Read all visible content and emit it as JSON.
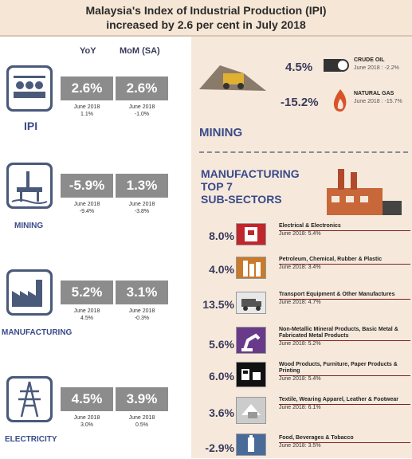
{
  "header": {
    "title_line1": "Malaysia's Index of Industrial Production (IPI)",
    "title_line2": "increased by 2.6 per cent in July 2018"
  },
  "columns": {
    "yoy": "YoY",
    "mom": "MoM (SA)"
  },
  "indices": [
    {
      "label": "IPI",
      "icon": "factory-robot-icon",
      "yoy": "2.6%",
      "mom": "2.6%",
      "yoy_prev": "June 2018\n1.1%",
      "mom_prev": "June 2018\n-1.0%"
    },
    {
      "label": "MINING",
      "icon": "oil-rig-icon",
      "yoy": "-5.9%",
      "mom": "1.3%",
      "yoy_prev": "June 2018\n-9.4%",
      "mom_prev": "June 2018\n-3.8%"
    },
    {
      "label": "MANUFACTURING",
      "icon": "factory-icon",
      "yoy": "5.2%",
      "mom": "3.1%",
      "yoy_prev": "June 2018\n4.5%",
      "mom_prev": "June 2018\n-0.3%"
    },
    {
      "label": "ELECTRICITY",
      "icon": "pylon-icon",
      "yoy": "4.5%",
      "mom": "3.9%",
      "yoy_prev": "June 2018\n3.0%",
      "mom_prev": "June 2018\n0.5%"
    }
  ],
  "mining": {
    "title": "MINING",
    "crude_oil": {
      "value": "4.5%",
      "label": "CRUDE OIL",
      "prev": "June 2018 : -2.2%"
    },
    "natural_gas": {
      "value": "-15.2%",
      "label": "NATURAL GAS",
      "prev": "June 2018 : -15.7%"
    }
  },
  "manufacturing": {
    "title_line1": "MANUFACTURING",
    "title_line2": "TOP 7",
    "title_line3": "SUB-SECTORS",
    "sectors": [
      {
        "value": "8.0%",
        "name": "Electrical & Electronics",
        "prev": "June 2018: 5.4%",
        "icon": "electronics-icon",
        "color": "#c0262c"
      },
      {
        "value": "4.0%",
        "name": "Petroleum, Chemical, Rubber & Plastic",
        "prev": "June 2018: 3.4%",
        "icon": "petroleum-icon",
        "color": "#c97a2a"
      },
      {
        "value": "13.5%",
        "name": "Transport Equipment & Other Manufactures",
        "prev": "June 2018: 4.7%",
        "icon": "truck-icon",
        "color": "#e8e8e8"
      },
      {
        "value": "5.6%",
        "name": "Non-Metallic Mineral Products, Basic Metal & Fabricated Metal Products",
        "prev": "June 2018: 5.2%",
        "icon": "robot-arm-icon",
        "color": "#6a3a8a"
      },
      {
        "value": "6.0%",
        "name": "Wood Products, Furniture, Paper Products & Printing",
        "prev": "June 2018: 5.4%",
        "icon": "furniture-icon",
        "color": "#111111"
      },
      {
        "value": "3.6%",
        "name": "Textile, Wearing Apparel, Leather & Footwear",
        "prev": "June 2018: 6.1%",
        "icon": "textile-icon",
        "color": "#cccccc"
      },
      {
        "value": "-2.9%",
        "name": "Food, Beverages & Tobacco",
        "prev": "June 2018: 3.5%",
        "icon": "food-icon",
        "color": "#4a6a9a"
      }
    ]
  }
}
